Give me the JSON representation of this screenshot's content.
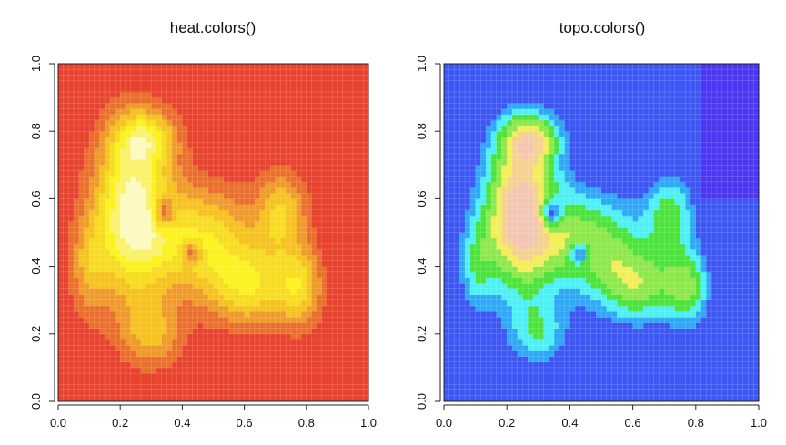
{
  "chart_data": [
    {
      "type": "heatmap",
      "title": "heat.colors()",
      "palette_name": "heat.colors",
      "palette": [
        "#E8432E",
        "#EB6F2C",
        "#EF9A2A",
        "#F5C21F",
        "#F7DC20",
        "#FBF21E",
        "#FAF26A",
        "#FCFAC0"
      ],
      "xlim": [
        0,
        1
      ],
      "ylim": [
        0,
        1
      ],
      "xticks": [
        "0.0",
        "0.2",
        "0.4",
        "0.6",
        "0.8",
        "1.0"
      ],
      "yticks": [
        "0.0",
        "0.2",
        "0.4",
        "0.6",
        "0.8",
        "1.0"
      ],
      "grid": true,
      "levels": 8
    },
    {
      "type": "heatmap",
      "title": "topo.colors()",
      "palette_name": "topo.colors",
      "palette": [
        "#4B36F2",
        "#3D57F4",
        "#2FA8F5",
        "#4CF0F5",
        "#4CE33D",
        "#8EE84B",
        "#F2EE58",
        "#F5D28F",
        "#F3C6B4"
      ],
      "xlim": [
        0,
        1
      ],
      "ylim": [
        0,
        1
      ],
      "xticks": [
        "0.0",
        "0.2",
        "0.4",
        "0.6",
        "0.8",
        "1.0"
      ],
      "yticks": [
        "0.0",
        "0.2",
        "0.4",
        "0.6",
        "0.8",
        "1.0"
      ],
      "grid": true,
      "levels": 9
    }
  ]
}
